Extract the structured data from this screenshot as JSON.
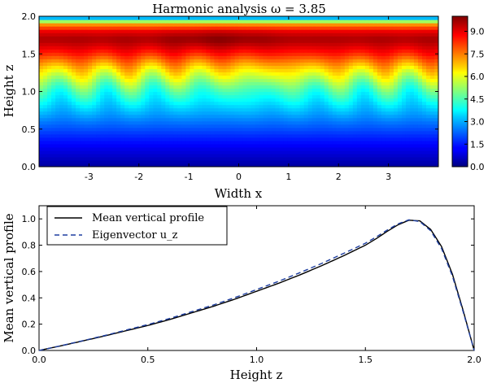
{
  "chart_data": [
    {
      "type": "heatmap",
      "title": "Harmonic analysis ω = 3.85",
      "xlabel": "Width x",
      "ylabel": "Height z",
      "xlim": [
        -4,
        4
      ],
      "ylim": [
        0,
        2
      ],
      "xticks": [
        "-3",
        "-2",
        "-1",
        "0",
        "1",
        "2",
        "3"
      ],
      "xtick_values": [
        -3,
        -2,
        -1,
        0,
        1,
        2,
        3
      ],
      "yticks": [
        "0.0",
        "0.5",
        "1.0",
        "1.5",
        "2.0"
      ],
      "ytick_values": [
        0,
        0.5,
        1.0,
        1.5,
        2.0
      ],
      "colorbar": {
        "ticks": [
          "0.0",
          "1.5",
          "3.0",
          "4.5",
          "6.0",
          "7.5",
          "9.0"
        ],
        "tick_values": [
          0,
          1.5,
          3.0,
          4.5,
          6.0,
          7.5,
          9.0
        ],
        "range": [
          0,
          10
        ],
        "colormap": "jet"
      },
      "mean_profile_z": [
        0.0,
        0.2,
        0.4,
        0.6,
        0.8,
        1.0,
        1.1,
        1.2,
        1.3,
        1.4,
        1.5,
        1.6,
        1.7,
        1.8,
        1.9,
        1.95,
        2.0
      ],
      "mean_profile_value": [
        0.3,
        0.9,
        1.6,
        2.4,
        3.3,
        4.3,
        5.0,
        5.8,
        6.6,
        7.5,
        8.4,
        9.1,
        9.6,
        9.0,
        7.2,
        4.5,
        2.0
      ]
    },
    {
      "type": "line",
      "xlabel": "Height z",
      "ylabel": "Mean vertical profile",
      "xlim": [
        0,
        2
      ],
      "ylim": [
        0,
        1.1
      ],
      "xticks": [
        "0.0",
        "0.5",
        "1.0",
        "1.5",
        "2.0"
      ],
      "xtick_values": [
        0,
        0.5,
        1.0,
        1.5,
        2.0
      ],
      "yticks": [
        "0.0",
        "0.2",
        "0.4",
        "0.6",
        "0.8",
        "1.0"
      ],
      "ytick_values": [
        0,
        0.2,
        0.4,
        0.6,
        0.8,
        1.0
      ],
      "legend_position": "top-left",
      "x": [
        0.0,
        0.1,
        0.2,
        0.3,
        0.4,
        0.5,
        0.6,
        0.7,
        0.8,
        0.9,
        1.0,
        1.1,
        1.2,
        1.3,
        1.4,
        1.5,
        1.55,
        1.6,
        1.65,
        1.7,
        1.75,
        1.8,
        1.85,
        1.9,
        1.95,
        2.0
      ],
      "series": [
        {
          "name": "Mean vertical profile",
          "style": "solid",
          "color": "#000000",
          "values": [
            0.0,
            0.035,
            0.072,
            0.11,
            0.15,
            0.19,
            0.235,
            0.285,
            0.335,
            0.39,
            0.45,
            0.51,
            0.575,
            0.645,
            0.72,
            0.8,
            0.85,
            0.905,
            0.955,
            0.99,
            0.985,
            0.92,
            0.79,
            0.58,
            0.3,
            0.0
          ]
        },
        {
          "name": "Eigenvector u_z",
          "style": "dashed",
          "color": "#1f3fa0",
          "values": [
            0.0,
            0.036,
            0.074,
            0.113,
            0.155,
            0.197,
            0.243,
            0.294,
            0.345,
            0.402,
            0.463,
            0.525,
            0.592,
            0.662,
            0.738,
            0.815,
            0.863,
            0.915,
            0.962,
            0.993,
            0.98,
            0.91,
            0.775,
            0.565,
            0.29,
            0.0
          ]
        }
      ]
    }
  ]
}
